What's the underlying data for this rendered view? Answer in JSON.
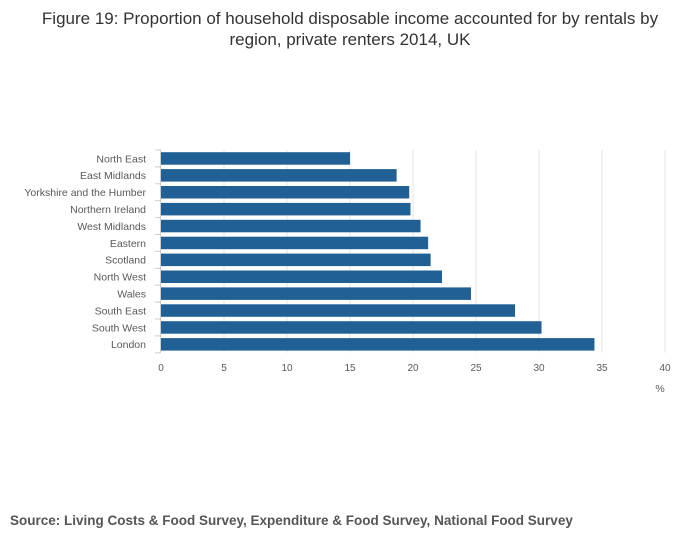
{
  "chart_data": {
    "type": "bar",
    "orientation": "horizontal",
    "title": "Figure 19: Proportion of household disposable income accounted for by rentals by region, private renters 2014, UK",
    "categories": [
      "North East",
      "East Midlands",
      "Yorkshire and the Humber",
      "Northern Ireland",
      "West Midlands",
      "Eastern",
      "Scotland",
      "North West",
      "Wales",
      "South East",
      "South West",
      "London"
    ],
    "values": [
      15.0,
      18.7,
      19.7,
      19.8,
      20.6,
      21.2,
      21.4,
      22.3,
      24.6,
      28.1,
      30.2,
      34.4
    ],
    "xlabel": "%",
    "ylabel": "",
    "xlim": [
      0,
      40
    ],
    "xticks": [
      "0",
      "5",
      "10",
      "15",
      "20",
      "25",
      "30",
      "35",
      "40"
    ],
    "grid": true,
    "bar_color": "#206095",
    "grid_color": "#e6e6e6",
    "source": "Source: Living Costs & Food Survey, Expenditure & Food Survey, National Food Survey"
  }
}
